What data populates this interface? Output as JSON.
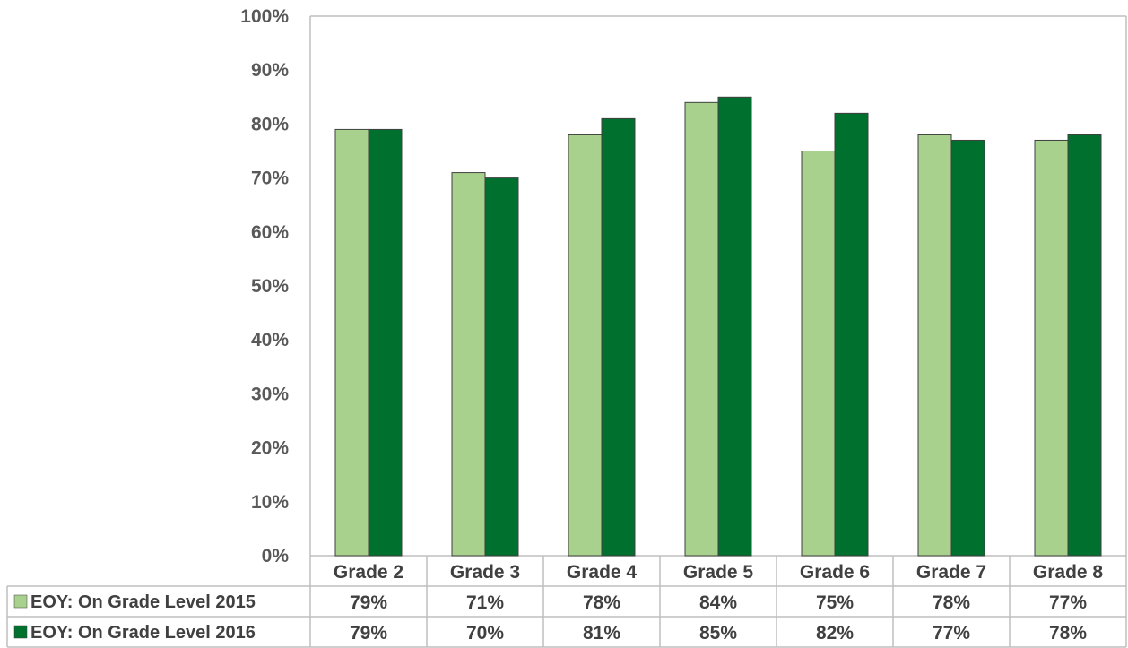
{
  "colors": {
    "series_2015": "#a9d18e",
    "series_2016": "#00702e",
    "axis": "#bfbfbf",
    "bar_outline": "#404040"
  },
  "chart_data": {
    "type": "bar",
    "categories": [
      "Grade 2",
      "Grade 3",
      "Grade 4",
      "Grade 5",
      "Grade 6",
      "Grade 7",
      "Grade 8"
    ],
    "series": [
      {
        "name": "EOY: On Grade Level 2015",
        "values": [
          79,
          71,
          78,
          84,
          75,
          78,
          77
        ],
        "labels": [
          "79%",
          "71%",
          "78%",
          "84%",
          "75%",
          "78%",
          "77%"
        ],
        "color": "#a9d18e"
      },
      {
        "name": "EOY: On Grade Level 2016",
        "values": [
          79,
          70,
          81,
          85,
          82,
          77,
          78
        ],
        "labels": [
          "79%",
          "70%",
          "81%",
          "85%",
          "82%",
          "77%",
          "78%"
        ],
        "color": "#00702e"
      }
    ],
    "ylim": [
      0,
      100
    ],
    "y_ticks": [
      0,
      10,
      20,
      30,
      40,
      50,
      60,
      70,
      80,
      90,
      100
    ],
    "y_tick_labels": [
      "0%",
      "10%",
      "20%",
      "30%",
      "40%",
      "50%",
      "60%",
      "70%",
      "80%",
      "90%",
      "100%"
    ],
    "grid": false,
    "legend": "data-table",
    "data_table": true
  }
}
